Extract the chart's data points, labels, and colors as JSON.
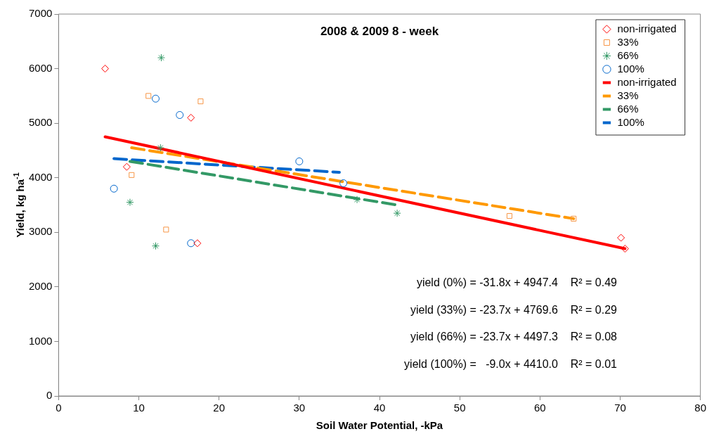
{
  "chart_data": {
    "type": "scatter",
    "title": "2008 & 2009 8 - week",
    "xlabel": "Soil Water Potential, -kPa",
    "ylabel": "Yield, kg ha$^{-1}$",
    "xlim": [
      0,
      80
    ],
    "xticks": [
      0,
      10,
      20,
      30,
      40,
      50,
      60,
      70,
      80
    ],
    "ylim": [
      0,
      7000
    ],
    "yticks": [
      0,
      1000,
      2000,
      3000,
      4000,
      5000,
      6000,
      7000
    ],
    "grid": false,
    "legend": "top right",
    "series": [
      {
        "name": "non-irrigated",
        "type": "scatter",
        "marker": "diamond",
        "color": "#ff0000",
        "x": [
          5.8,
          8.5,
          16.5,
          17.3,
          70.1,
          70.6
        ],
        "values": [
          6000,
          4200,
          5100,
          2800,
          2900,
          2700
        ]
      },
      {
        "name": "33%",
        "type": "scatter",
        "marker": "square",
        "color": "#f79646",
        "x": [
          11.2,
          17.7,
          9.1,
          13.4,
          56.2,
          64.2
        ],
        "values": [
          5500,
          5400,
          4050,
          3050,
          3300,
          3250
        ]
      },
      {
        "name": "66%",
        "type": "scatter",
        "marker": "cross",
        "color": "#339966",
        "x": [
          12.8,
          12.7,
          8.9,
          12.1,
          37.2,
          42.2
        ],
        "values": [
          6200,
          4550,
          3550,
          2750,
          3600,
          3350
        ]
      },
      {
        "name": "100%",
        "type": "scatter",
        "marker": "circle",
        "color": "#0066cc",
        "x": [
          12.1,
          15.1,
          6.9,
          16.5,
          30.0,
          35.5
        ],
        "values": [
          5450,
          5150,
          3800,
          2800,
          4300,
          3900
        ]
      },
      {
        "name": "non-irrigated",
        "type": "line",
        "marker": "none",
        "line_style": "solid",
        "color": "#ff0000",
        "x": [
          5.8,
          70.6
        ],
        "values": [
          4750,
          2700
        ]
      },
      {
        "name": "33%",
        "type": "line",
        "marker": "none",
        "line_style": "dashed",
        "color": "#ff9900",
        "x": [
          9.1,
          64.2
        ],
        "values": [
          4550,
          3250
        ]
      },
      {
        "name": "66%",
        "type": "line",
        "marker": "none",
        "line_style": "dashed",
        "color": "#339966",
        "x": [
          8.9,
          42.2
        ],
        "values": [
          4300,
          3500
        ]
      },
      {
        "name": "100%",
        "type": "line",
        "marker": "none",
        "line_style": "dashed",
        "color": "#0066cc",
        "x": [
          6.9,
          35.0
        ],
        "values": [
          4350,
          4100
        ]
      }
    ],
    "annotations": [
      "yield (0%) = -31.8x + 4947.4    R² = 0.49",
      "yield (33%) = -23.7x + 4769.6    R² = 0.29",
      "yield (66%) = -23.7x + 4497.3    R² = 0.08",
      "yield (100%) =   -9.0x + 4410.0    R² = 0.01"
    ]
  }
}
